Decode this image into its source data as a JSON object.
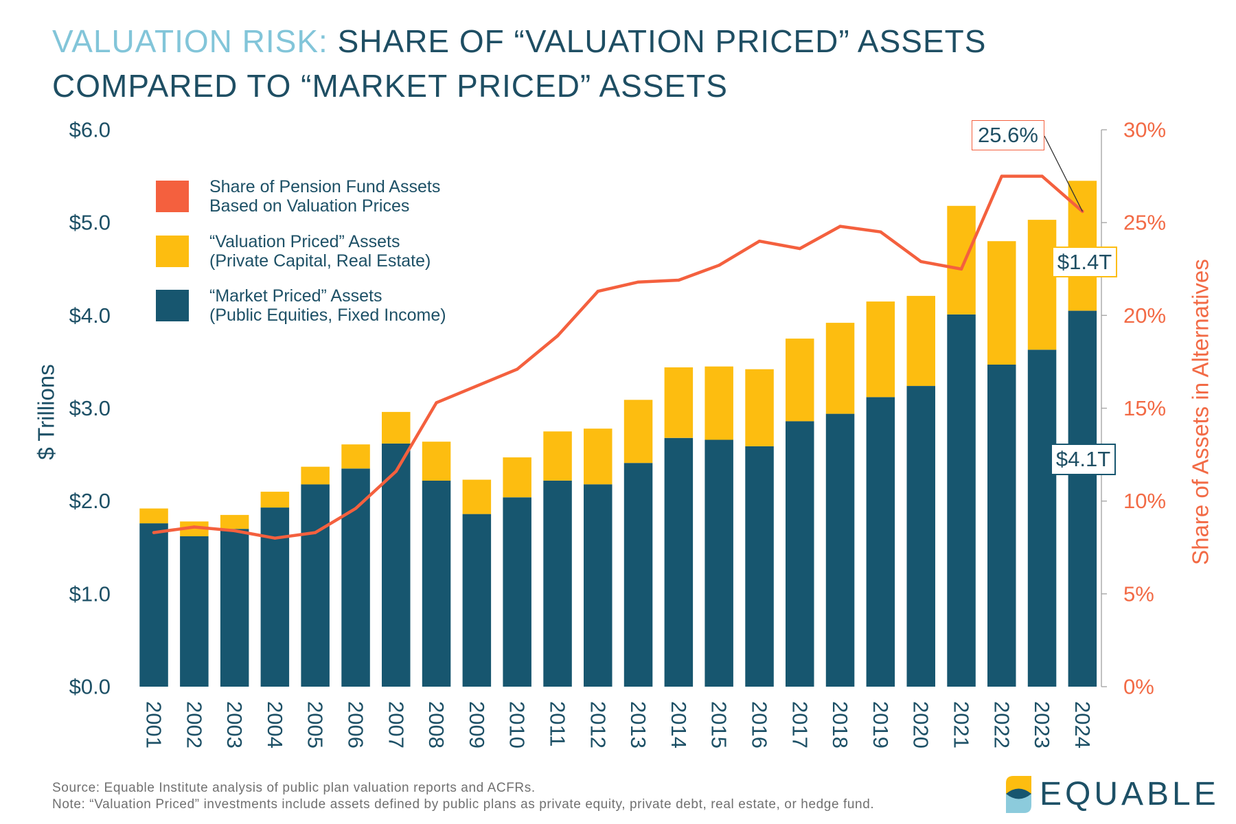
{
  "chart_data": {
    "type": "bar",
    "stacked": true,
    "title": {
      "lead": "VALUATION RISK:",
      "line1": "SHARE OF “VALUATION PRICED” ASSETS",
      "line2": "COMPARED TO “MARKET PRICED” ASSETS"
    },
    "categories": [
      "2001",
      "2002",
      "2003",
      "2004",
      "2005",
      "2006",
      "2007",
      "2008",
      "2009",
      "2010",
      "2011",
      "2012",
      "2013",
      "2014",
      "2015",
      "2016",
      "2017",
      "2018",
      "2019",
      "2020",
      "2021",
      "2022",
      "2023",
      "2024"
    ],
    "series": [
      {
        "name": [
          "Share of Pension Fund Assets",
          "Based on Valuation Prices"
        ],
        "type": "line",
        "axis": "right",
        "color": "#f4603e",
        "values": [
          8.3,
          8.6,
          8.4,
          8.0,
          8.3,
          9.6,
          11.6,
          15.3,
          16.2,
          17.1,
          18.9,
          21.3,
          21.8,
          21.9,
          22.7,
          24.0,
          23.6,
          24.8,
          24.5,
          22.9,
          22.5,
          27.5,
          27.5,
          25.6
        ]
      },
      {
        "name": [
          "“Valuation Priced” Assets",
          "(Private Capital, Real Estate)"
        ],
        "type": "bar",
        "axis": "left",
        "color": "#fdbd10",
        "values": [
          0.16,
          0.16,
          0.15,
          0.17,
          0.19,
          0.26,
          0.34,
          0.42,
          0.37,
          0.43,
          0.53,
          0.6,
          0.68,
          0.76,
          0.79,
          0.83,
          0.89,
          0.98,
          1.03,
          0.97,
          1.17,
          1.33,
          1.4,
          1.4
        ]
      },
      {
        "name": [
          "“Market Priced” Assets",
          "(Public Equities, Fixed Income)"
        ],
        "type": "bar",
        "axis": "left",
        "color": "#17566f",
        "values": [
          1.76,
          1.62,
          1.7,
          1.93,
          2.18,
          2.35,
          2.62,
          2.22,
          1.86,
          2.04,
          2.22,
          2.18,
          2.41,
          2.68,
          2.66,
          2.59,
          2.86,
          2.94,
          3.12,
          3.24,
          4.01,
          3.47,
          3.63,
          4.05
        ]
      }
    ],
    "y_axis": {
      "label": "$ Trillions",
      "range": [
        0,
        6
      ],
      "ticks": [
        0,
        1,
        2,
        3,
        4,
        5,
        6
      ],
      "tick_labels": [
        "$0.0",
        "$1.0",
        "$2.0",
        "$3.0",
        "$4.0",
        "$5.0",
        "$6.0"
      ]
    },
    "y2_axis": {
      "label": "Share of Assets in Alternatives",
      "range": [
        0,
        30
      ],
      "ticks": [
        0,
        5,
        10,
        15,
        20,
        25,
        30
      ],
      "tick_labels": [
        "0%",
        "5%",
        "10%",
        "15%",
        "20%",
        "25%",
        "30%"
      ]
    },
    "annotations": [
      {
        "text": "25.6%",
        "color": "#f4603e"
      },
      {
        "text": "$1.4T",
        "color": "#fdbd10"
      },
      {
        "text": "$4.1T",
        "color": "#17566f"
      }
    ],
    "legend": "top-left",
    "grid": false
  },
  "footer": {
    "source": "Source: Equable Institute analysis of public plan valuation reports and ACFRs.",
    "note": "Note: “Valuation Priced” investments include assets defined by public plans as private equity, private debt, real estate, or hedge fund."
  },
  "brand": {
    "name": "EQUABLE"
  }
}
